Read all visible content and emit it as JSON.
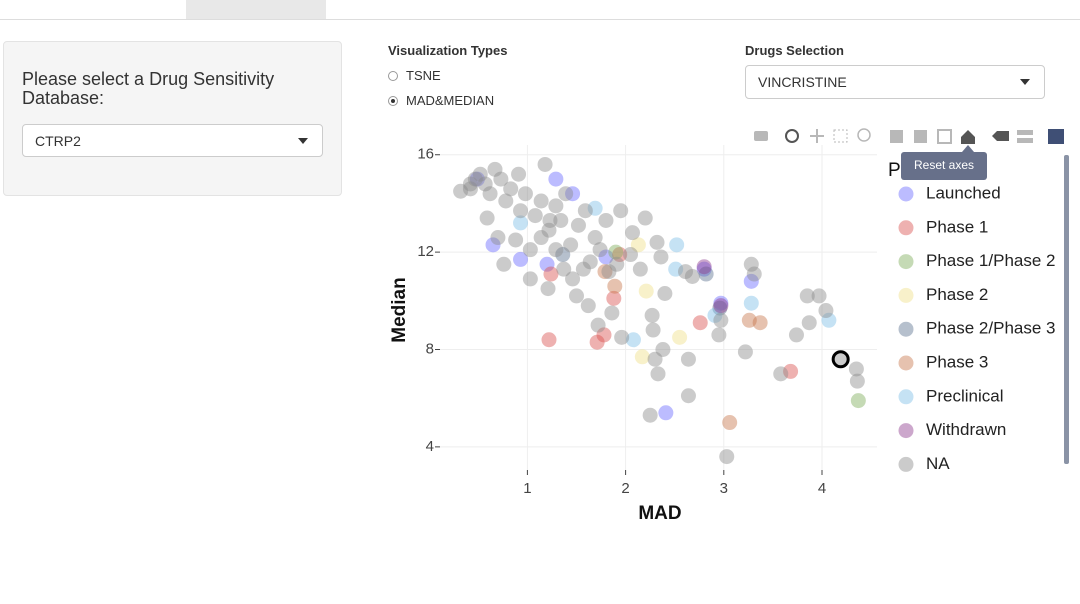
{
  "sidebar": {
    "label": "Please select a Drug Sensitivity Database:",
    "selected": "CTRP2"
  },
  "visualization": {
    "label": "Visualization Types",
    "options": [
      "TSNE",
      "MAD&MEDIAN"
    ]
  },
  "drugs": {
    "label": "Drugs Selection",
    "selected": "VINCRISTINE"
  },
  "tooltip": "Reset axes",
  "chart_data": {
    "type": "scatter",
    "x_label": "MAD",
    "y_label": "Median",
    "legend_title": "P",
    "xlim": [
      0.11,
      4.56
    ],
    "ylim": [
      3.05,
      16.4
    ],
    "xticks": [
      1,
      2,
      3,
      4
    ],
    "yticks": [
      4,
      8,
      12,
      16
    ],
    "grid": true,
    "legend": "right",
    "series": [
      {
        "name": "Launched",
        "color": "#6b6bff",
        "x": [
          0.49,
          1.29,
          1.46,
          0.65,
          0.93,
          1.2,
          2.41,
          3.28,
          2.97,
          2.8,
          1.8
        ],
        "y": [
          15.0,
          15.0,
          14.4,
          12.3,
          11.7,
          11.5,
          5.4,
          10.8,
          9.9,
          11.3,
          11.8
        ]
      },
      {
        "name": "Phase 1",
        "color": "#d9534f",
        "x": [
          1.22,
          1.24,
          1.71,
          1.78,
          2.76,
          3.68,
          1.94,
          1.88
        ],
        "y": [
          8.4,
          11.1,
          8.3,
          8.6,
          9.1,
          7.1,
          11.9,
          10.1
        ]
      },
      {
        "name": "Phase 1/Phase 2",
        "color": "#7fae5a",
        "x": [
          4.37,
          1.9
        ],
        "y": [
          5.9,
          12.0
        ]
      },
      {
        "name": "Phase 2",
        "color": "#f0e08a",
        "x": [
          2.17,
          2.55,
          2.21,
          2.13
        ],
        "y": [
          7.7,
          8.5,
          10.4,
          12.3
        ]
      },
      {
        "name": "Phase 2/Phase 3",
        "color": "#5e7390",
        "x": [
          2.96,
          2.82,
          1.36
        ],
        "y": [
          9.7,
          11.1,
          11.9
        ]
      },
      {
        "name": "Phase 3",
        "color": "#c8784e",
        "x": [
          3.26,
          3.37,
          3.06,
          1.79,
          1.89
        ],
        "y": [
          9.2,
          9.1,
          5.0,
          11.2,
          10.6
        ]
      },
      {
        "name": "Preclinical",
        "color": "#7fbfe6",
        "x": [
          2.08,
          2.91,
          3.28,
          4.07,
          2.52,
          2.51,
          1.69,
          0.93
        ],
        "y": [
          8.4,
          9.4,
          9.9,
          9.2,
          12.3,
          11.3,
          13.8,
          13.2
        ]
      },
      {
        "name": "Withdrawn",
        "color": "#8e3b8e",
        "x": [
          2.8,
          2.97
        ],
        "y": [
          11.4,
          9.8
        ]
      },
      {
        "name": "NA",
        "color": "#8c8c8c",
        "x": [
          1.18,
          0.91,
          0.67,
          0.42,
          0.59,
          0.7,
          0.76,
          1.03,
          1.21,
          1.5,
          1.62,
          1.86,
          1.72,
          1.96,
          2.27,
          2.28,
          2.3,
          2.33,
          2.38,
          2.4,
          2.25,
          2.64,
          2.64,
          2.68,
          2.61,
          2.95,
          2.97,
          3.22,
          3.28,
          3.31,
          3.03,
          3.58,
          3.74,
          3.85,
          3.97,
          3.87,
          4.04,
          4.35,
          4.36,
          1.34,
          1.59,
          1.8,
          1.95,
          2.2,
          2.07,
          2.32,
          2.05,
          2.36,
          1.91,
          2.15,
          1.83,
          1.57,
          1.46,
          1.37,
          1.14,
          1.22,
          1.03,
          0.88,
          0.47,
          0.57,
          0.73,
          0.83,
          0.98,
          1.14,
          1.29,
          1.39,
          0.78,
          0.93,
          1.08,
          1.23,
          0.62,
          0.42,
          0.52,
          0.32,
          1.52,
          1.69,
          1.44,
          1.29,
          1.74,
          1.64
        ],
        "y": [
          15.6,
          15.2,
          15.4,
          14.8,
          13.4,
          12.6,
          11.5,
          10.9,
          10.5,
          10.2,
          9.8,
          9.5,
          9.0,
          8.5,
          9.4,
          8.8,
          7.6,
          7.0,
          8.0,
          10.3,
          5.3,
          6.1,
          7.6,
          11.0,
          11.2,
          8.6,
          9.2,
          7.9,
          11.5,
          11.1,
          3.6,
          7.0,
          8.6,
          10.2,
          10.2,
          9.1,
          9.6,
          7.2,
          6.7,
          13.3,
          13.7,
          13.3,
          13.7,
          13.4,
          12.8,
          12.4,
          11.9,
          11.8,
          11.5,
          11.3,
          11.2,
          11.3,
          10.9,
          11.3,
          12.6,
          12.9,
          12.1,
          12.5,
          15.0,
          14.8,
          15.0,
          14.6,
          14.4,
          14.1,
          13.9,
          14.4,
          14.1,
          13.7,
          13.5,
          13.3,
          14.4,
          14.6,
          15.2,
          14.5,
          13.1,
          12.6,
          12.3,
          12.1,
          12.1,
          11.6
        ]
      }
    ],
    "highlight": {
      "x": 4.19,
      "y": 7.6
    }
  }
}
